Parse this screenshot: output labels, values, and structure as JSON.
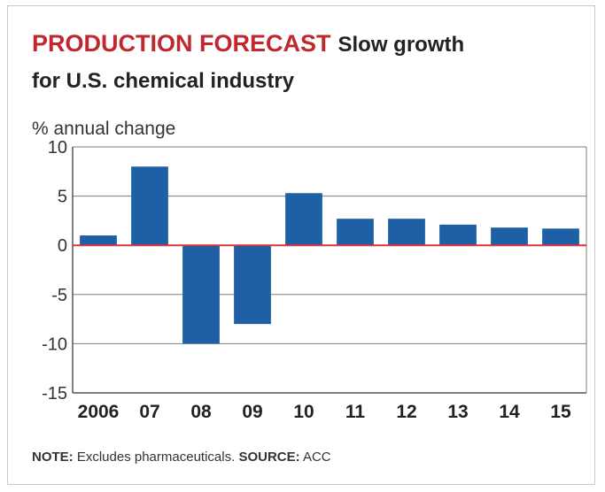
{
  "header": {
    "title": "PRODUCTION FORECAST",
    "subtitle_line1": "Slow growth",
    "subtitle_line2": "for U.S. chemical industry"
  },
  "note": {
    "note_label": "NOTE:",
    "note_text": " Excludes pharmaceuticals. ",
    "source_label": "SOURCE:",
    "source_text": " ACC"
  },
  "colors": {
    "bar": "#1f5fa6",
    "zero_line": "#d9343a",
    "title": "#c0282e"
  },
  "chart_data": {
    "type": "bar",
    "title": "PRODUCTION FORECAST",
    "subtitle": "Slow growth for U.S. chemical industry",
    "xlabel": "",
    "ylabel": "% annual change",
    "categories": [
      "2006",
      "07",
      "08",
      "09",
      "10",
      "11",
      "12",
      "13",
      "14",
      "15"
    ],
    "values": [
      1.0,
      8.0,
      -10.0,
      -8.0,
      5.3,
      2.7,
      2.7,
      2.1,
      1.8,
      1.7
    ],
    "ylim": [
      -15,
      10
    ],
    "yticks": [
      10,
      5,
      0,
      -5,
      -10,
      -15
    ],
    "grid": true,
    "legend": "none"
  }
}
